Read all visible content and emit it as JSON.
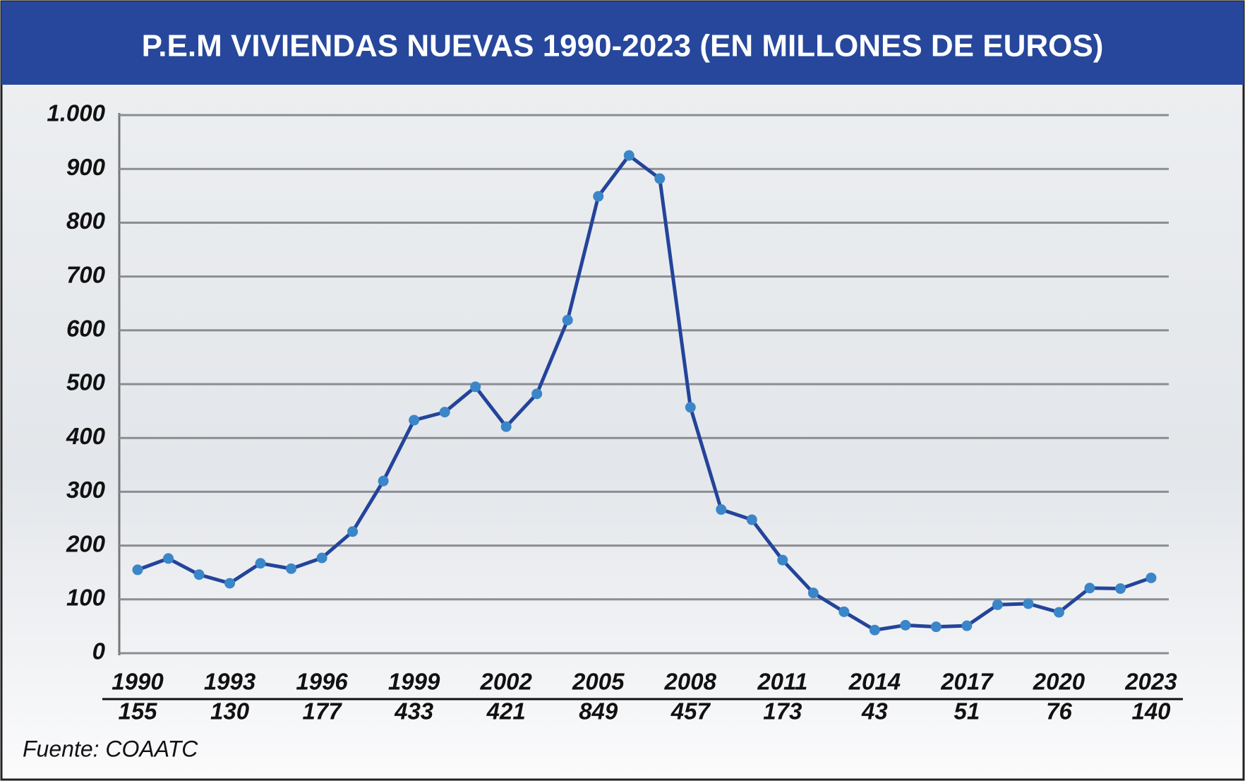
{
  "chart_data": {
    "type": "line",
    "title": "P.E.M VIVIENDAS NUEVAS 1990-2023 (EN MILLONES DE EUROS)",
    "source": "Fuente: COAATC",
    "categories": [
      "1990",
      null,
      null,
      "1993",
      null,
      null,
      "1996",
      null,
      null,
      "1999",
      null,
      null,
      "2002",
      null,
      null,
      "2005",
      null,
      null,
      "2008",
      null,
      null,
      "2011",
      null,
      null,
      "2014",
      null,
      null,
      "2017",
      null,
      null,
      "2020",
      null,
      null,
      "2023"
    ],
    "series": [
      {
        "name": "P.E.M",
        "color": "#24449a",
        "marker_color": "#3a86c8",
        "values": [
          155,
          176,
          146,
          130,
          167,
          157,
          177,
          226,
          320,
          433,
          448,
          495,
          421,
          482,
          619,
          849,
          925,
          882,
          457,
          267,
          248,
          173,
          112,
          77,
          43,
          52,
          49,
          51,
          90,
          92,
          76,
          121,
          120,
          140
        ]
      }
    ],
    "ylim": [
      0,
      1000
    ],
    "yticks": [
      0,
      100,
      200,
      300,
      400,
      500,
      600,
      700,
      800,
      900,
      {
        "value": 1000,
        "label": "1.000"
      }
    ],
    "grid": true
  }
}
